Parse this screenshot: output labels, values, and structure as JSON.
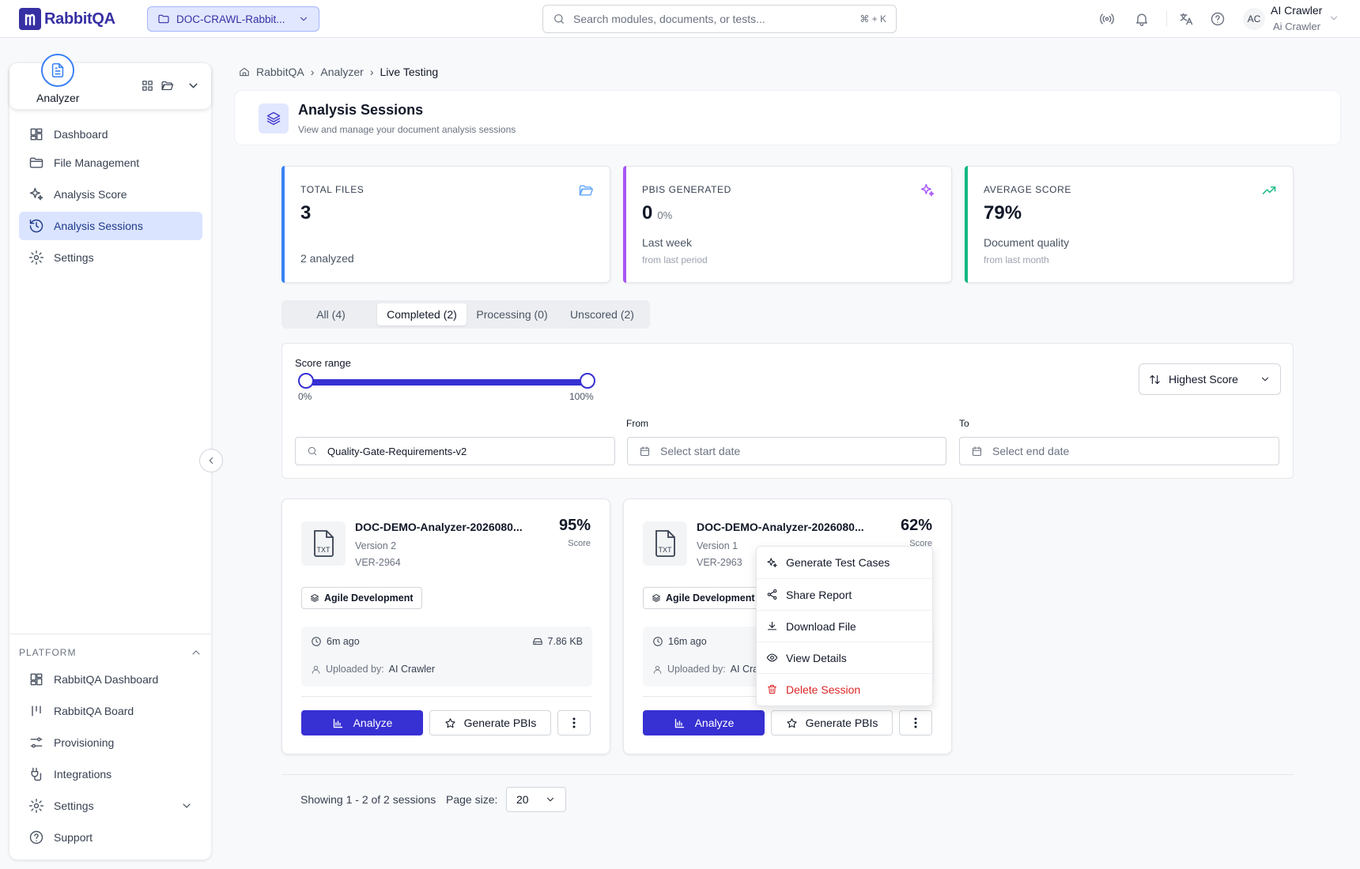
{
  "app": {
    "name": "RabbitQA"
  },
  "project": {
    "name": "DOC-CRAWL-Rabbit..."
  },
  "search": {
    "placeholder": "Search modules, documents, or tests...",
    "shortcut": "⌘ + K"
  },
  "user": {
    "initials": "AC",
    "name": "AI Crawler",
    "role": "Ai Crawler"
  },
  "sidebar": {
    "module": {
      "label": "Analyzer"
    },
    "items": [
      {
        "label": "Dashboard",
        "icon": "grid-icon"
      },
      {
        "label": "File Management",
        "icon": "folder-icon"
      },
      {
        "label": "Analysis Score",
        "icon": "sparkle-icon"
      },
      {
        "label": "Analysis Sessions",
        "icon": "history-icon",
        "active": true
      },
      {
        "label": "Settings",
        "icon": "gear-icon"
      }
    ],
    "platform": {
      "title": "PLATFORM",
      "items": [
        {
          "label": "RabbitQA Dashboard",
          "icon": "grid-icon"
        },
        {
          "label": "RabbitQA Board",
          "icon": "kanban-icon"
        },
        {
          "label": "Provisioning",
          "icon": "sliders-icon"
        },
        {
          "label": "Integrations",
          "icon": "plug-icon"
        },
        {
          "label": "Settings",
          "icon": "gear-icon"
        },
        {
          "label": "Support",
          "icon": "help-icon"
        }
      ]
    }
  },
  "breadcrumb": [
    "RabbitQA",
    "Analyzer",
    "Live Testing"
  ],
  "header": {
    "title": "Analysis Sessions",
    "subtitle": "View and manage your document analysis sessions"
  },
  "stats": [
    {
      "label": "TOTAL FILES",
      "value": "3",
      "pct": "",
      "line1": "",
      "line2": "2 analyzed",
      "color": "#3b82f6"
    },
    {
      "label": "PBIS GENERATED",
      "value": "0",
      "pct": "0%",
      "line1": "Last week",
      "line2": "from last period",
      "color": "#a855f7"
    },
    {
      "label": "AVERAGE SCORE",
      "value": "79%",
      "pct": "",
      "line1": "Document quality",
      "line2": "from last month",
      "color": "#10b981"
    }
  ],
  "tabs": [
    "All (4)",
    "Completed (2)",
    "Processing (0)",
    "Unscored (2)"
  ],
  "filters": {
    "score_label": "Score range",
    "min_label": "0%",
    "max_label": "100%",
    "score_min": 0,
    "score_max": 100,
    "sort": "Highest Score",
    "search_value": "Quality-Gate-Requirements-v2",
    "from_label": "From",
    "to_label": "To",
    "from_placeholder": "Select start date",
    "to_placeholder": "Select end date"
  },
  "cards": [
    {
      "name": "DOC-DEMO-Analyzer-2026080...",
      "version": "Version 2",
      "id": "VER-2964",
      "score": "95%",
      "score_label": "Score",
      "tag": "Agile Development",
      "time": "6m ago",
      "size": "7.86 KB",
      "uploader_label": "Uploaded by:",
      "uploader": "AI Crawler",
      "analyze": "Analyze",
      "generate": "Generate PBIs"
    },
    {
      "name": "DOC-DEMO-Analyzer-2026080...",
      "version": "Version 1",
      "id": "VER-2963",
      "score": "62%",
      "score_label": "Score",
      "tag": "Agile Development",
      "time": "16m ago",
      "size": "",
      "uploader_label": "Uploaded by:",
      "uploader": "AI Cra",
      "analyze": "Analyze",
      "generate": "Generate PBIs"
    }
  ],
  "menu": [
    "Generate Test Cases",
    "Share Report",
    "Download File",
    "View Details",
    "Delete Session"
  ],
  "pager": {
    "summary": "Showing 1 - 2 of 2 sessions",
    "size_label": "Page size:",
    "size": "20"
  }
}
